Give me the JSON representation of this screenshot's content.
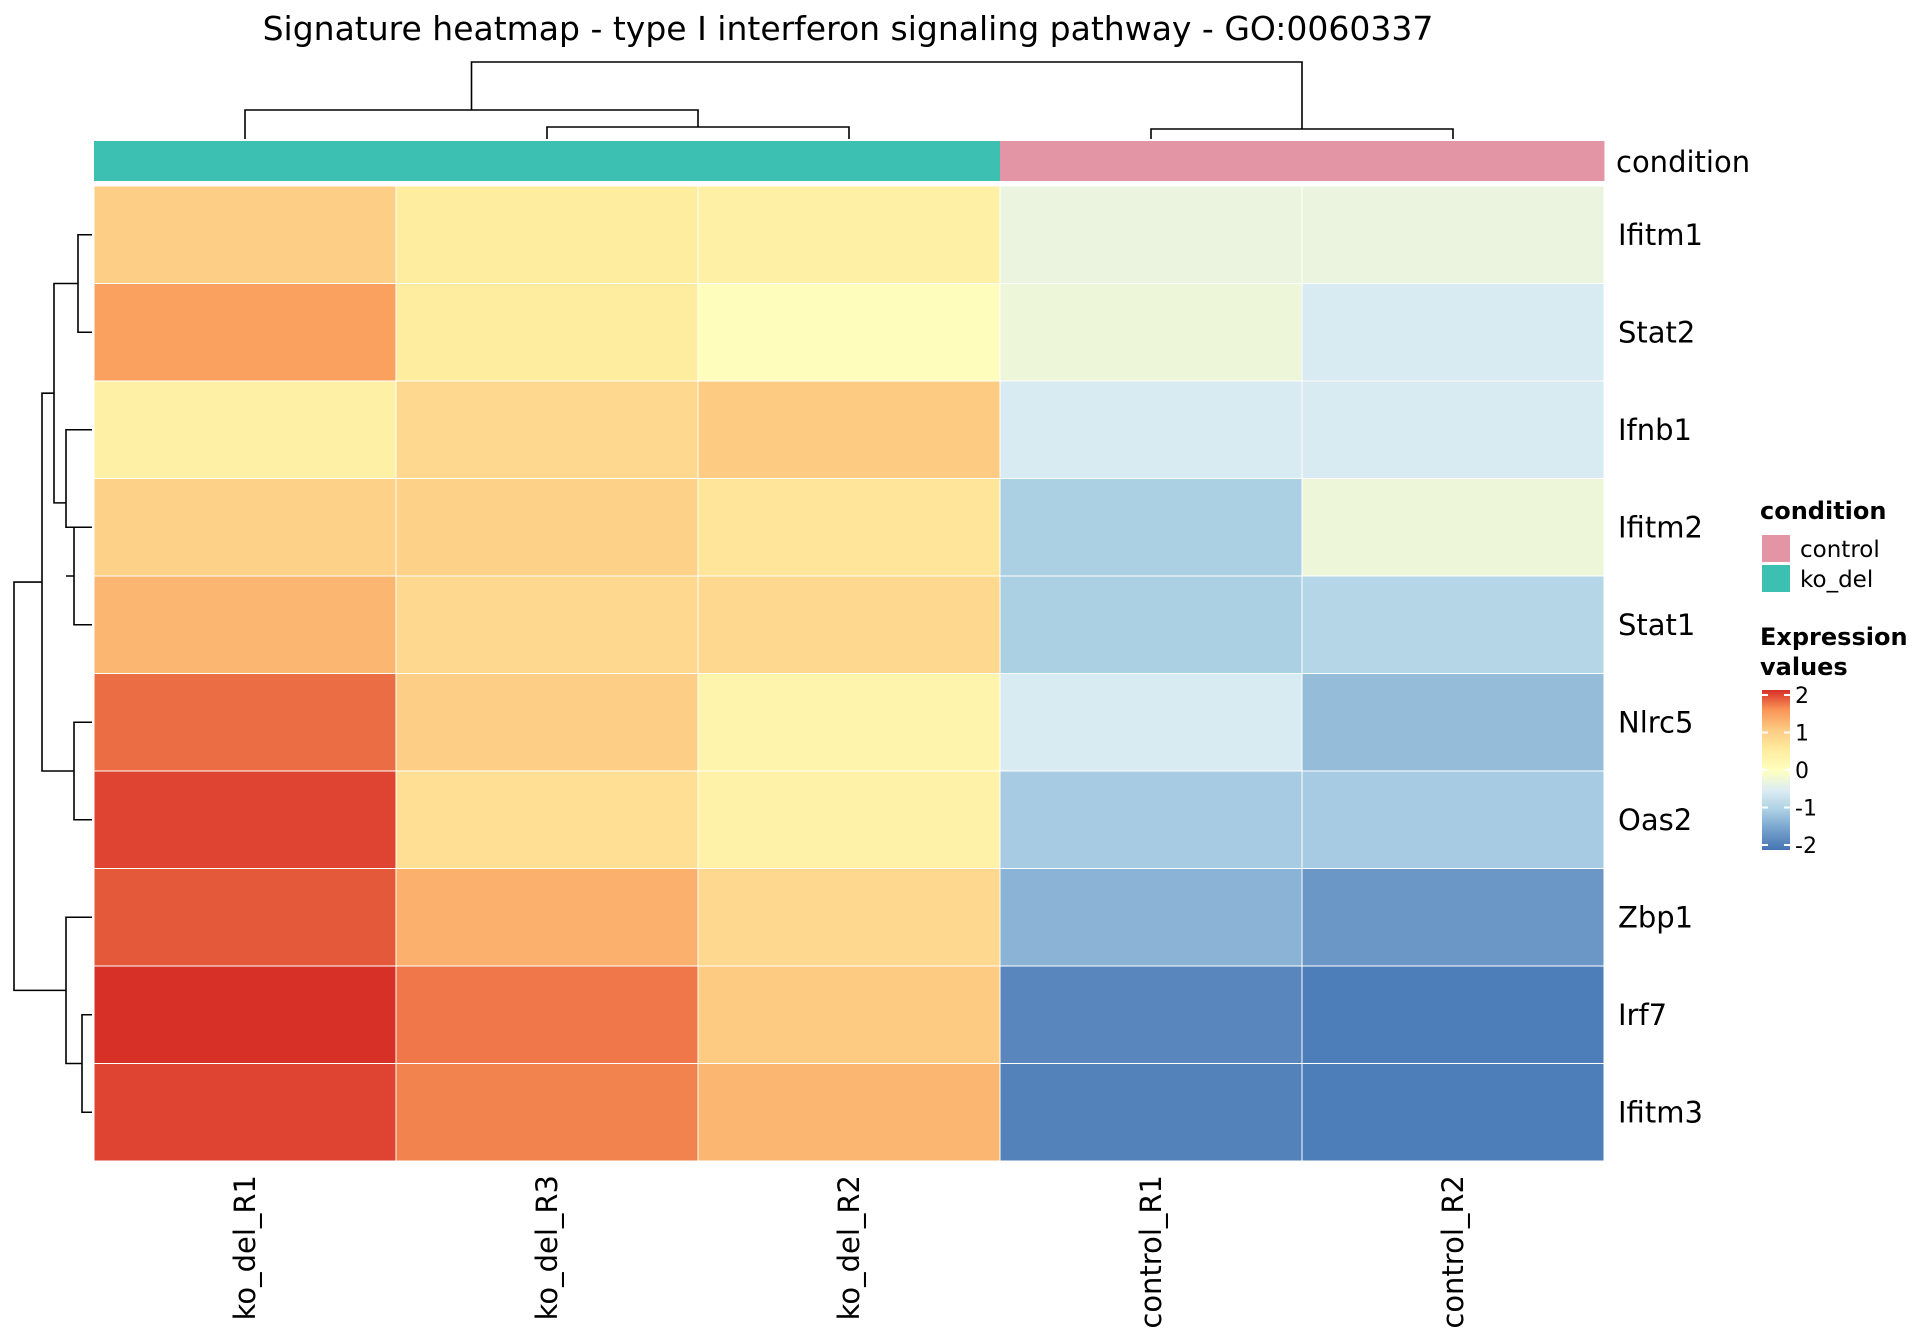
{
  "chart_data": {
    "type": "heatmap",
    "title": "Signature heatmap - type I interferon signaling pathway - GO:0060337",
    "columns": [
      "ko_del_R1",
      "ko_del_R3",
      "ko_del_R2",
      "control_R1",
      "control_R2"
    ],
    "rows": [
      "Ifitm1",
      "Stat2",
      "Ifnb1",
      "Ifitm2",
      "Stat1",
      "Nlrc5",
      "Oas2",
      "Zbp1",
      "Irf7",
      "Ifitm3"
    ],
    "values": [
      [
        0.95,
        0.5,
        0.4,
        -0.3,
        -0.3
      ],
      [
        1.4,
        0.5,
        0.05,
        -0.25,
        -0.55
      ],
      [
        0.4,
        0.8,
        1.0,
        -0.55,
        -0.55
      ],
      [
        0.9,
        0.9,
        0.6,
        -1.0,
        -0.25
      ],
      [
        1.2,
        0.8,
        0.8,
        -1.0,
        -0.9
      ],
      [
        1.7,
        0.95,
        0.3,
        -0.55,
        -1.2
      ],
      [
        1.9,
        0.7,
        0.35,
        -1.05,
        -1.05
      ],
      [
        1.8,
        1.25,
        0.8,
        -1.3,
        -1.6
      ],
      [
        2.0,
        1.65,
        1.0,
        -1.8,
        -1.9
      ],
      [
        1.9,
        1.6,
        1.2,
        -1.85,
        -1.9
      ]
    ],
    "column_annotation": {
      "name": "condition",
      "values": [
        "ko_del",
        "ko_del",
        "ko_del",
        "control",
        "control"
      ],
      "colors": {
        "control": "#e495a5",
        "ko_del": "#3cc0b2"
      }
    },
    "legend": {
      "annotation_title": "condition",
      "annotation_items": [
        "control",
        "ko_del"
      ],
      "scale_title": [
        "Expression",
        "values"
      ],
      "scale_ticks": [
        2,
        1,
        0,
        -1,
        -2
      ],
      "scale_labels": [
        "2",
        "1",
        "0",
        "-1",
        "-2"
      ],
      "placement": "right"
    },
    "color_scale": {
      "range": [
        -2,
        2
      ],
      "stops": [
        {
          "value": -2,
          "color": "#4575b4"
        },
        {
          "value": -1.5,
          "color": "#74a0cb"
        },
        {
          "value": -1,
          "color": "#abd0e4"
        },
        {
          "value": -0.5,
          "color": "#ddedf3"
        },
        {
          "value": 0,
          "color": "#ffffbf"
        },
        {
          "value": 0.5,
          "color": "#feec9f"
        },
        {
          "value": 1,
          "color": "#fdcb82"
        },
        {
          "value": 1.5,
          "color": "#f99658"
        },
        {
          "value": 2,
          "color": "#d73027"
        }
      ]
    },
    "row_dendrogram": true,
    "column_dendrogram": true
  }
}
